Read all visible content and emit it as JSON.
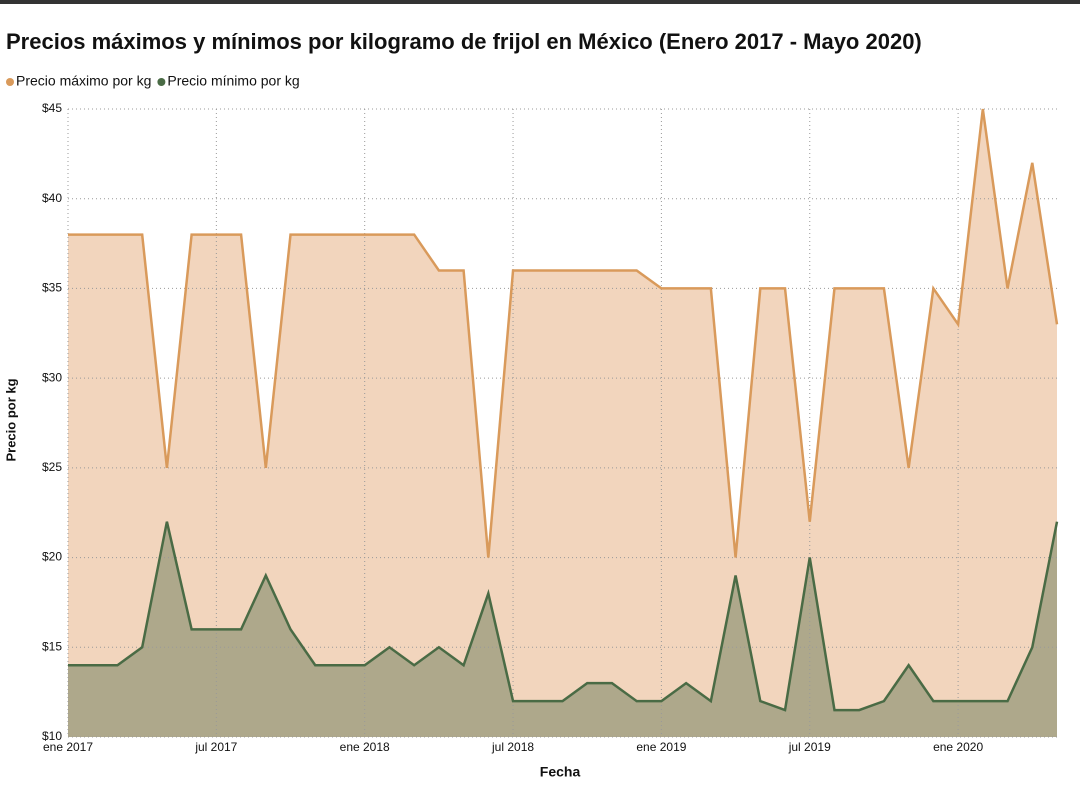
{
  "chart_data": {
    "type": "area",
    "title": "Precios máximos y mínimos por kilogramo de frijol en México (Enero 2017 - Mayo 2020)",
    "x_label": "Fecha",
    "y_label": "Precio por kg",
    "x": [
      "2017-01",
      "2017-02",
      "2017-03",
      "2017-04",
      "2017-05",
      "2017-06",
      "2017-07",
      "2017-08",
      "2017-09",
      "2017-10",
      "2017-11",
      "2017-12",
      "2018-01",
      "2018-02",
      "2018-03",
      "2018-04",
      "2018-05",
      "2018-06",
      "2018-07",
      "2018-08",
      "2018-09",
      "2018-10",
      "2018-11",
      "2018-12",
      "2019-01",
      "2019-02",
      "2019-03",
      "2019-04",
      "2019-05",
      "2019-06",
      "2019-07",
      "2019-08",
      "2019-09",
      "2019-10",
      "2019-11",
      "2019-12",
      "2020-01",
      "2020-02",
      "2020-03",
      "2020-04",
      "2020-05"
    ],
    "series": [
      {
        "name": "Precio máximo por kg",
        "color": "#d99a5b",
        "fill": "#f2d5bd",
        "values": [
          38,
          38,
          38,
          38,
          25,
          38,
          38,
          38,
          25,
          38,
          38,
          38,
          38,
          38,
          38,
          36,
          36,
          20,
          36,
          36,
          36,
          36,
          36,
          36,
          35,
          35,
          35,
          20,
          35,
          35,
          22,
          35,
          35,
          35,
          25,
          35,
          33,
          45,
          35,
          42,
          33
        ]
      },
      {
        "name": "Precio mínimo por kg",
        "color": "#4a6b45",
        "fill": "#aea88b",
        "values": [
          14,
          14,
          14,
          15,
          22,
          16,
          16,
          16,
          19,
          16,
          14,
          14,
          14,
          15,
          14,
          15,
          14,
          18,
          12,
          12,
          12,
          13,
          13,
          12,
          12,
          13,
          12,
          19,
          12,
          11.5,
          20,
          11.5,
          11.5,
          12,
          14,
          12,
          12,
          12,
          12,
          15,
          22
        ]
      }
    ],
    "xlim": [
      "2017-01",
      "2020-05"
    ],
    "xticks": [
      {
        "value": "2017-01",
        "label": "ene 2017"
      },
      {
        "value": "2017-07",
        "label": "jul 2017"
      },
      {
        "value": "2018-01",
        "label": "ene 2018"
      },
      {
        "value": "2018-07",
        "label": "jul 2018"
      },
      {
        "value": "2019-01",
        "label": "ene 2019"
      },
      {
        "value": "2019-07",
        "label": "jul 2019"
      },
      {
        "value": "2020-01",
        "label": "ene 2020"
      }
    ],
    "ylim": [
      10,
      45
    ],
    "yticks": [
      {
        "value": 10,
        "label": "$10"
      },
      {
        "value": 15,
        "label": "$15"
      },
      {
        "value": 20,
        "label": "$20"
      },
      {
        "value": 25,
        "label": "$25"
      },
      {
        "value": 30,
        "label": "$30"
      },
      {
        "value": 35,
        "label": "$35"
      },
      {
        "value": 40,
        "label": "$40"
      },
      {
        "value": 45,
        "label": "$45"
      }
    ],
    "grid": true,
    "legend": "top-left"
  }
}
